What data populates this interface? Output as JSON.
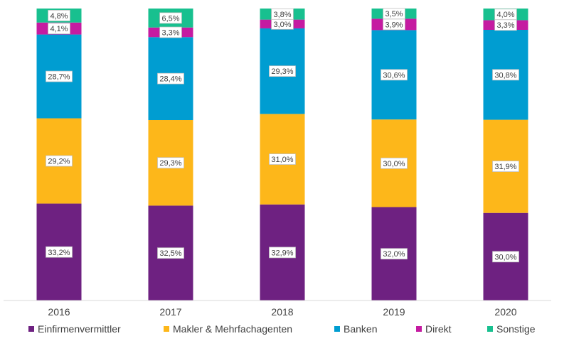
{
  "chart_data": {
    "type": "bar",
    "stacked": true,
    "categories": [
      "2016",
      "2017",
      "2018",
      "2019",
      "2020"
    ],
    "series": [
      {
        "name": "Einfirmenvermittler",
        "color": "#6E2181",
        "values": [
          33.2,
          32.5,
          32.9,
          32.0,
          30.0
        ],
        "labels": [
          "33,2%",
          "32,5%",
          "32,9%",
          "32,0%",
          "30,0%"
        ]
      },
      {
        "name": "Makler & Mehrfachagenten",
        "color": "#FDB71A",
        "values": [
          29.2,
          29.3,
          31.0,
          30.0,
          31.9
        ],
        "labels": [
          "29,2%",
          "29,3%",
          "31,0%",
          "30,0%",
          "31,9%"
        ]
      },
      {
        "name": "Banken",
        "color": "#009DD1",
        "values": [
          28.7,
          28.4,
          29.3,
          30.6,
          30.8
        ],
        "labels": [
          "28,7%",
          "28,4%",
          "29,3%",
          "30,6%",
          "30,8%"
        ]
      },
      {
        "name": "Direkt",
        "color": "#C51BA1",
        "values": [
          4.1,
          3.3,
          3.0,
          3.9,
          3.3
        ],
        "labels": [
          "4,1%",
          "3,3%",
          "3,0%",
          "3,9%",
          "3,3%"
        ]
      },
      {
        "name": "Sonstige",
        "color": "#18C08F",
        "values": [
          4.8,
          6.5,
          3.8,
          3.5,
          4.0
        ],
        "labels": [
          "4,8%",
          "6,5%",
          "3,8%",
          "3,5%",
          "4,0%"
        ]
      }
    ],
    "title": "",
    "xlabel": "",
    "ylabel": "",
    "ylim": [
      0,
      100
    ],
    "grid": false,
    "legend_position": "bottom"
  }
}
